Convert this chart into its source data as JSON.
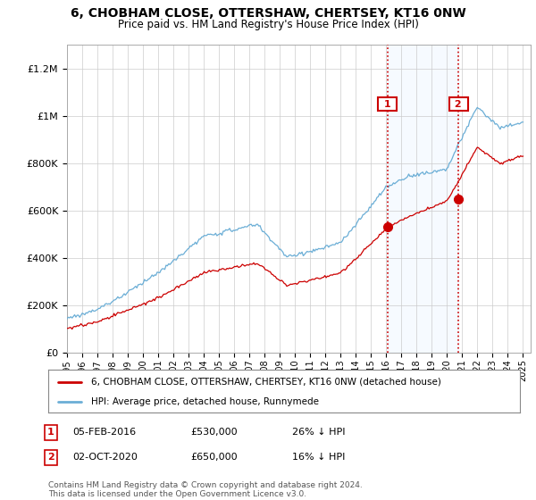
{
  "title": "6, CHOBHAM CLOSE, OTTERSHAW, CHERTSEY, KT16 0NW",
  "subtitle": "Price paid vs. HM Land Registry's House Price Index (HPI)",
  "legend_line1": "6, CHOBHAM CLOSE, OTTERSHAW, CHERTSEY, KT16 0NW (detached house)",
  "legend_line2": "HPI: Average price, detached house, Runnymede",
  "sale1_label": "1",
  "sale1_date": "05-FEB-2016",
  "sale1_price": "£530,000",
  "sale1_hpi": "26% ↓ HPI",
  "sale2_label": "2",
  "sale2_date": "02-OCT-2020",
  "sale2_price": "£650,000",
  "sale2_hpi": "16% ↓ HPI",
  "footer": "Contains HM Land Registry data © Crown copyright and database right 2024.\nThis data is licensed under the Open Government Licence v3.0.",
  "hpi_color": "#6baed6",
  "price_color": "#cc0000",
  "vline_color": "#cc0000",
  "shade_color": "#ddeeff",
  "ylim_min": 0,
  "ylim_max": 1300000,
  "sale1_year": 2016.09,
  "sale2_year": 2020.75,
  "bg_color": "#ffffff",
  "plot_bg": "#ffffff",
  "grid_color": "#cccccc",
  "xmin": 1995,
  "xmax": 2025.5
}
